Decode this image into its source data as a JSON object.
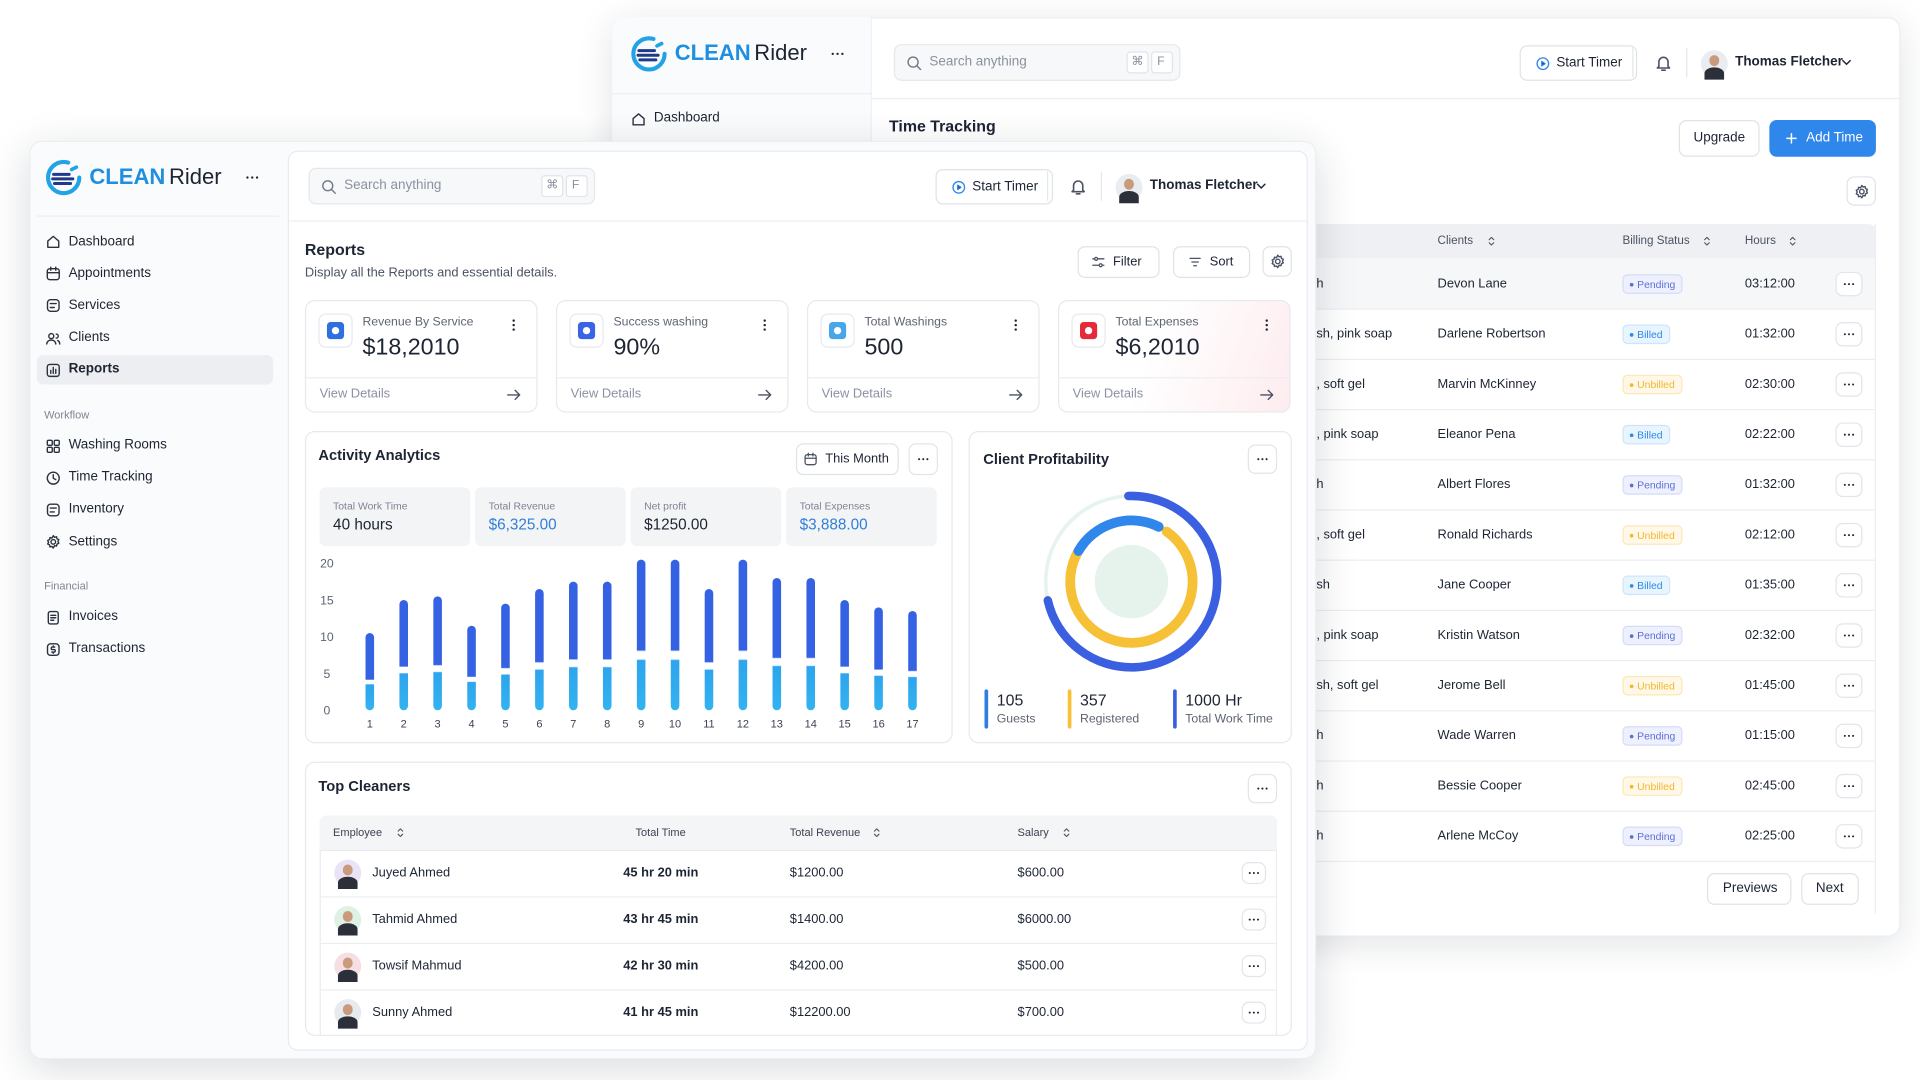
{
  "back": {
    "brand": {
      "a": "CLEAN",
      "b": "Rider"
    },
    "search": "Search anything",
    "keys": [
      "⌘",
      "F"
    ],
    "start_timer": "Start Timer",
    "user": "Thomas Fletcher",
    "nav": [
      "Dashboard"
    ],
    "title": "Time Tracking",
    "upgrade": "Upgrade",
    "add_time": "Add Time",
    "table": {
      "headers": [
        "Clients",
        "Billing Status",
        "Hours"
      ],
      "rows": [
        [
          "h",
          "Devon Lane",
          "Pending",
          "03:12:00"
        ],
        [
          "sh, pink soap",
          "Darlene Robertson",
          "Billed",
          "01:32:00"
        ],
        [
          ", soft gel",
          "Marvin McKinney",
          "Unbilled",
          "02:30:00"
        ],
        [
          ", pink soap",
          "Eleanor Pena",
          "Billed",
          "02:22:00"
        ],
        [
          "h",
          "Albert Flores",
          "Pending",
          "01:32:00"
        ],
        [
          ", soft gel",
          "Ronald Richards",
          "Unbilled",
          "02:12:00"
        ],
        [
          "sh",
          "Jane Cooper",
          "Billed",
          "01:35:00"
        ],
        [
          ", pink soap",
          "Kristin Watson",
          "Pending",
          "02:32:00"
        ],
        [
          "sh, soft gel",
          "Jerome Bell",
          "Unbilled",
          "01:45:00"
        ],
        [
          "h",
          "Wade Warren",
          "Pending",
          "01:15:00"
        ],
        [
          "h",
          "Bessie Cooper",
          "Unbilled",
          "02:45:00"
        ],
        [
          "h",
          "Arlene McCoy",
          "Pending",
          "02:25:00"
        ]
      ]
    },
    "previous": "Previews",
    "next": "Next"
  },
  "front": {
    "brand": {
      "a": "CLEAN",
      "b": "Rider"
    },
    "search": "Search anything",
    "keys": [
      "⌘",
      "F"
    ],
    "start_timer": "Start Timer",
    "user": "Thomas Fletcher",
    "nav": {
      "main": [
        "Dashboard",
        "Appointments",
        "Services",
        "Clients",
        "Reports"
      ],
      "workflow": {
        "label": "Workflow",
        "items": [
          "Washing Rooms",
          "Time Tracking",
          "Inventory",
          "Settings"
        ]
      },
      "financial": {
        "label": "Financial",
        "items": [
          "Invoices",
          "Transactions"
        ]
      }
    },
    "reports": {
      "title": "Reports",
      "subtitle": "Display all the Reports and essential details.",
      "filter": "Filter",
      "sort": "Sort"
    },
    "stats": [
      {
        "label": "Revenue By Service",
        "value": "$18,2010",
        "link": "View Details"
      },
      {
        "label": "Success washing",
        "value": "90%",
        "link": "View Details"
      },
      {
        "label": "Total Washings",
        "value": "500",
        "link": "View Details"
      },
      {
        "label": "Total Expenses",
        "value": "$6,2010",
        "link": "View Details"
      }
    ],
    "analytics": {
      "title": "Activity Analytics",
      "period": "This Month",
      "metrics": [
        {
          "label": "Total Work Time",
          "value": "40 hours"
        },
        {
          "label": "Total Revenue",
          "value": "$6,325.00"
        },
        {
          "label": "Net profit",
          "value": "$1250.00"
        },
        {
          "label": "Total Expenses",
          "value": "$3,888.00"
        }
      ]
    },
    "profitability": {
      "title": "Client Profitability",
      "stats": [
        {
          "value": 105,
          "label": "Guests"
        },
        {
          "value": 357,
          "label": "Registered"
        },
        {
          "value": "1000 Hr",
          "label": "Total Work Time"
        }
      ]
    },
    "cleaners": {
      "title": "Top Cleaners",
      "headers": [
        "Employee",
        "Total Time",
        "Total Revenue",
        "Salary"
      ],
      "rows": [
        [
          "Juyed Ahmed",
          "45 hr 20 min",
          "$1200.00",
          "$600.00"
        ],
        [
          "Tahmid Ahmed",
          "43 hr 45 min",
          "$1400.00",
          "$6000.00"
        ],
        [
          "Towsif Mahmud",
          "42 hr 30 min",
          "$4200.00",
          "$500.00"
        ],
        [
          "Sunny Ahmed",
          "41 hr 45 min",
          "$12200.00",
          "$700.00"
        ]
      ]
    }
  },
  "status_colors": {
    "Pending": {
      "bg": "#eef1fd",
      "fg": "#5b6fd8",
      "border": "#d5dcf7"
    },
    "Billed": {
      "bg": "#e8f4fe",
      "fg": "#2c8ae6",
      "border": "#cde5fb"
    },
    "Unbilled": {
      "bg": "#fff8e6",
      "fg": "#f2b630",
      "border": "#fbe8b8"
    }
  },
  "chart_data": {
    "type": "bar",
    "categories": [
      "1",
      "2",
      "3",
      "4",
      "5",
      "6",
      "7",
      "8",
      "9",
      "10",
      "11",
      "12",
      "13",
      "14",
      "15",
      "16",
      "17"
    ],
    "values": [
      10.5,
      15,
      15.5,
      11.5,
      14.5,
      16.5,
      17.5,
      17.5,
      20.5,
      20.5,
      16.5,
      20.5,
      18,
      18,
      15,
      14,
      13.5
    ],
    "color": "#3562e3",
    "ylim": [
      0,
      21
    ],
    "yticks": [
      0,
      5,
      10,
      15,
      20
    ],
    "grid": false
  }
}
